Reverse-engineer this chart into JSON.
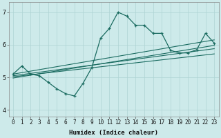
{
  "xlabel": "Humidex (Indice chaleur)",
  "ylabel": "",
  "bg_color": "#cdeaea",
  "line_color": "#1a6b60",
  "grid_color": "#aed4d4",
  "xlim": [
    -0.5,
    23.5
  ],
  "ylim": [
    3.8,
    7.3
  ],
  "xticks": [
    0,
    1,
    2,
    3,
    4,
    5,
    6,
    7,
    8,
    9,
    10,
    11,
    12,
    13,
    14,
    15,
    16,
    17,
    18,
    19,
    20,
    21,
    22,
    23
  ],
  "yticks": [
    4,
    5,
    6,
    7
  ],
  "main_line_x": [
    0,
    1,
    2,
    3,
    4,
    5,
    6,
    7,
    8,
    9,
    10,
    11,
    12,
    13,
    14,
    15,
    16,
    17,
    18,
    19,
    20,
    21,
    22,
    23
  ],
  "main_line_y": [
    5.1,
    5.35,
    5.1,
    5.05,
    4.85,
    4.65,
    4.5,
    4.43,
    4.82,
    5.3,
    6.2,
    6.5,
    7.0,
    6.88,
    6.6,
    6.6,
    6.35,
    6.35,
    5.83,
    5.75,
    5.75,
    5.85,
    6.35,
    6.05
  ],
  "trend1_x": [
    0,
    23
  ],
  "trend1_y": [
    5.1,
    6.15
  ],
  "trend2_x": [
    0,
    23
  ],
  "trend2_y": [
    5.05,
    5.88
  ],
  "trend3_x": [
    0,
    23
  ],
  "trend3_y": [
    5.02,
    5.72
  ],
  "trend4_x": [
    0,
    23
  ],
  "trend4_y": [
    4.98,
    5.98
  ]
}
